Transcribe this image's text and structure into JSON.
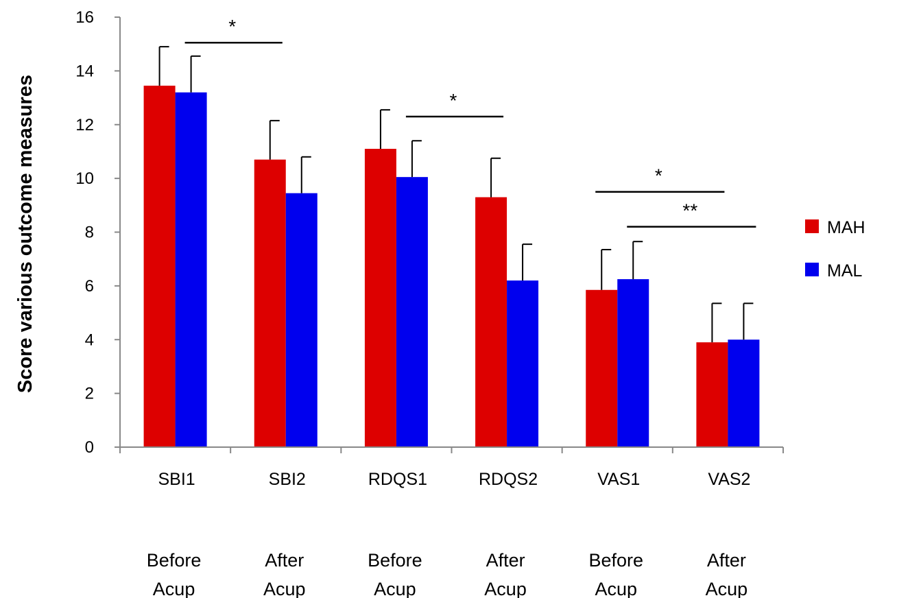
{
  "chart_data": {
    "type": "bar",
    "title": "",
    "xlabel": "",
    "ylabel": "Score various outcome measures",
    "ylim": [
      0,
      16
    ],
    "yticks": [
      0,
      2,
      4,
      6,
      8,
      10,
      12,
      14,
      16
    ],
    "grid": false,
    "legend_position": "right",
    "categories": [
      "SBI1",
      "SBI2",
      "RDQS1",
      "RDQS2",
      "VAS1",
      "VAS2"
    ],
    "category_sublabels": [
      [
        "Before",
        "Acup"
      ],
      [
        "After",
        "Acup"
      ],
      [
        "Before",
        "Acup"
      ],
      [
        "After",
        "Acup"
      ],
      [
        "Before",
        "Acup"
      ],
      [
        "After",
        "Acup"
      ]
    ],
    "series": [
      {
        "name": "MAH",
        "color": "#dd0000",
        "values": [
          13.45,
          10.7,
          11.1,
          9.3,
          5.85,
          3.9
        ],
        "errors": [
          1.45,
          1.45,
          1.45,
          1.45,
          1.5,
          1.45
        ]
      },
      {
        "name": "MAL",
        "color": "#0000ee",
        "values": [
          13.2,
          9.45,
          10.05,
          6.2,
          6.25,
          4.0
        ],
        "errors": [
          1.35,
          1.35,
          1.35,
          1.35,
          1.4,
          1.35
        ]
      }
    ],
    "significance": [
      {
        "label": "*",
        "from_category": 0,
        "from_series": 1,
        "to_category": 1,
        "to_series": 0,
        "y": 15.05
      },
      {
        "label": "*",
        "from_category": 2,
        "from_series": 1,
        "to_category": 3,
        "to_series": 0,
        "y": 12.3
      },
      {
        "label": "*",
        "from_category": 4,
        "from_series": 0,
        "to_category": 5,
        "to_series": 0,
        "y": 9.5
      },
      {
        "label": "**",
        "from_category": 4,
        "from_series": 1,
        "to_category": 5,
        "to_series": 1,
        "y": 8.2
      }
    ]
  }
}
